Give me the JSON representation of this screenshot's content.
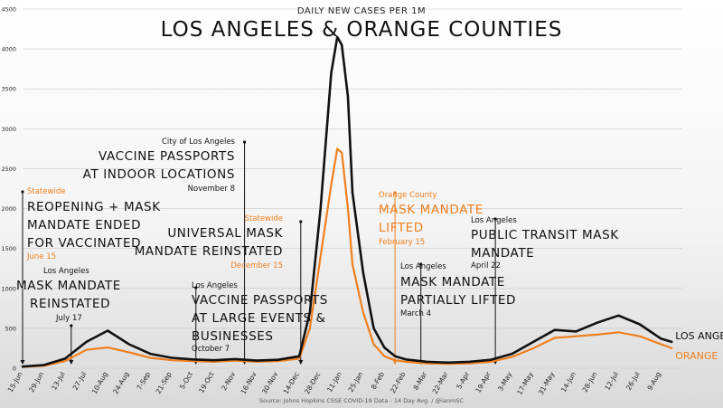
{
  "subtitle": "DAILY NEW CASES PER 1M",
  "title": "LOS ANGELES & ORANGE COUNTIES",
  "source": "Source: Johns Hopkins CSSE COVID-19 Data - 14 Day Avg. / @ianmSC",
  "colors": {
    "la": "#111111",
    "orange": "#f07f1e",
    "grid": "#c9c9c9",
    "text": "#222222"
  },
  "annotations": {
    "a1": {
      "who": "Statewide",
      "text1": "REOPENING + MASK",
      "text2": "MANDATE ENDED",
      "text3": "FOR VACCINATED",
      "date": "June 15"
    },
    "a2": {
      "who": "Los Angeles",
      "text1": "MASK MANDATE",
      "text2": "REINSTATED",
      "date": "July 17"
    },
    "a3": {
      "who": "Los Angeles",
      "text1": "VACCINE PASSPORTS",
      "text2": "AT LARGE EVENTS &",
      "text3": "BUSINESSES",
      "date": "October 7"
    },
    "a4": {
      "who": "City of Los Angeles",
      "text1": "VACCINE PASSPORTS",
      "text2": "AT INDOOR LOCATIONS",
      "date": "November 8"
    },
    "a5": {
      "who": "Statewide",
      "text1": "UNIVERSAL MASK",
      "text2": "MANDATE REINSTATED",
      "date": "December 15"
    },
    "a6": {
      "who": "Orange County",
      "text1": "MASK MANDATE",
      "text2": "LIFTED",
      "date": "February 15"
    },
    "a7": {
      "who": "Los Angeles",
      "text1": "MASK MANDATE",
      "text2": "PARTIALLY LIFTED",
      "date": "March 4"
    },
    "a8": {
      "who": "Los Angeles",
      "text1": "PUBLIC TRANSIT MASK",
      "text2": "MANDATE",
      "date": "April 22"
    }
  },
  "chart_data": {
    "type": "line",
    "title": "LOS ANGELES & ORANGE COUNTIES",
    "subtitle": "DAILY NEW CASES PER 1M",
    "ylim": [
      0,
      4500
    ],
    "yticks": [
      0,
      500,
      1000,
      1500,
      2000,
      2500,
      3000,
      3500,
      4000,
      4500
    ],
    "grid": "horizontal",
    "x_ticks": [
      "15-Jun",
      "29-Jun",
      "13-Jul",
      "27-Jul",
      "10-Aug",
      "24-Aug",
      "7-Sep",
      "21-Sep",
      "5-Oct",
      "19-Oct",
      "2-Nov",
      "16-Nov",
      "30-Nov",
      "14-Dec",
      "28-Dec",
      "11-Jan",
      "25-Jan",
      "8-Feb",
      "22-Feb",
      "8-Mar",
      "22-Mar",
      "5-Apr",
      "19-Apr",
      "3-May",
      "17-May",
      "31-May",
      "14-Jun",
      "28-Jun",
      "12-Jul",
      "26-Jul",
      "9-Aug"
    ],
    "x": [
      "15-Jun",
      "29-Jun",
      "13-Jul",
      "27-Jul",
      "10-Aug",
      "24-Aug",
      "7-Sep",
      "21-Sep",
      "5-Oct",
      "19-Oct",
      "2-Nov",
      "16-Nov",
      "30-Nov",
      "14-Dec",
      "21-Dec",
      "28-Dec",
      "4-Jan",
      "8-Jan",
      "11-Jan",
      "15-Jan",
      "18-Jan",
      "25-Jan",
      "1-Feb",
      "8-Feb",
      "15-Feb",
      "22-Feb",
      "8-Mar",
      "22-Mar",
      "5-Apr",
      "19-Apr",
      "3-May",
      "17-May",
      "31-May",
      "14-Jun",
      "28-Jun",
      "12-Jul",
      "26-Jul",
      "9-Aug",
      "16-Aug"
    ],
    "series": [
      {
        "name": "LOS ANGELES",
        "values": [
          20,
          40,
          120,
          330,
          470,
          300,
          180,
          130,
          110,
          100,
          115,
          95,
          105,
          150,
          700,
          2000,
          3700,
          4150,
          4050,
          3400,
          2200,
          1200,
          500,
          260,
          150,
          110,
          80,
          70,
          80,
          105,
          180,
          330,
          480,
          460,
          570,
          660,
          550,
          370,
          330
        ]
      },
      {
        "name": "ORANGE",
        "values": [
          15,
          30,
          90,
          230,
          260,
          200,
          130,
          100,
          90,
          80,
          95,
          80,
          90,
          120,
          500,
          1400,
          2300,
          2750,
          2700,
          2000,
          1300,
          700,
          300,
          150,
          100,
          80,
          60,
          55,
          60,
          80,
          140,
          250,
          380,
          400,
          420,
          450,
          400,
          300,
          250
        ]
      }
    ]
  }
}
